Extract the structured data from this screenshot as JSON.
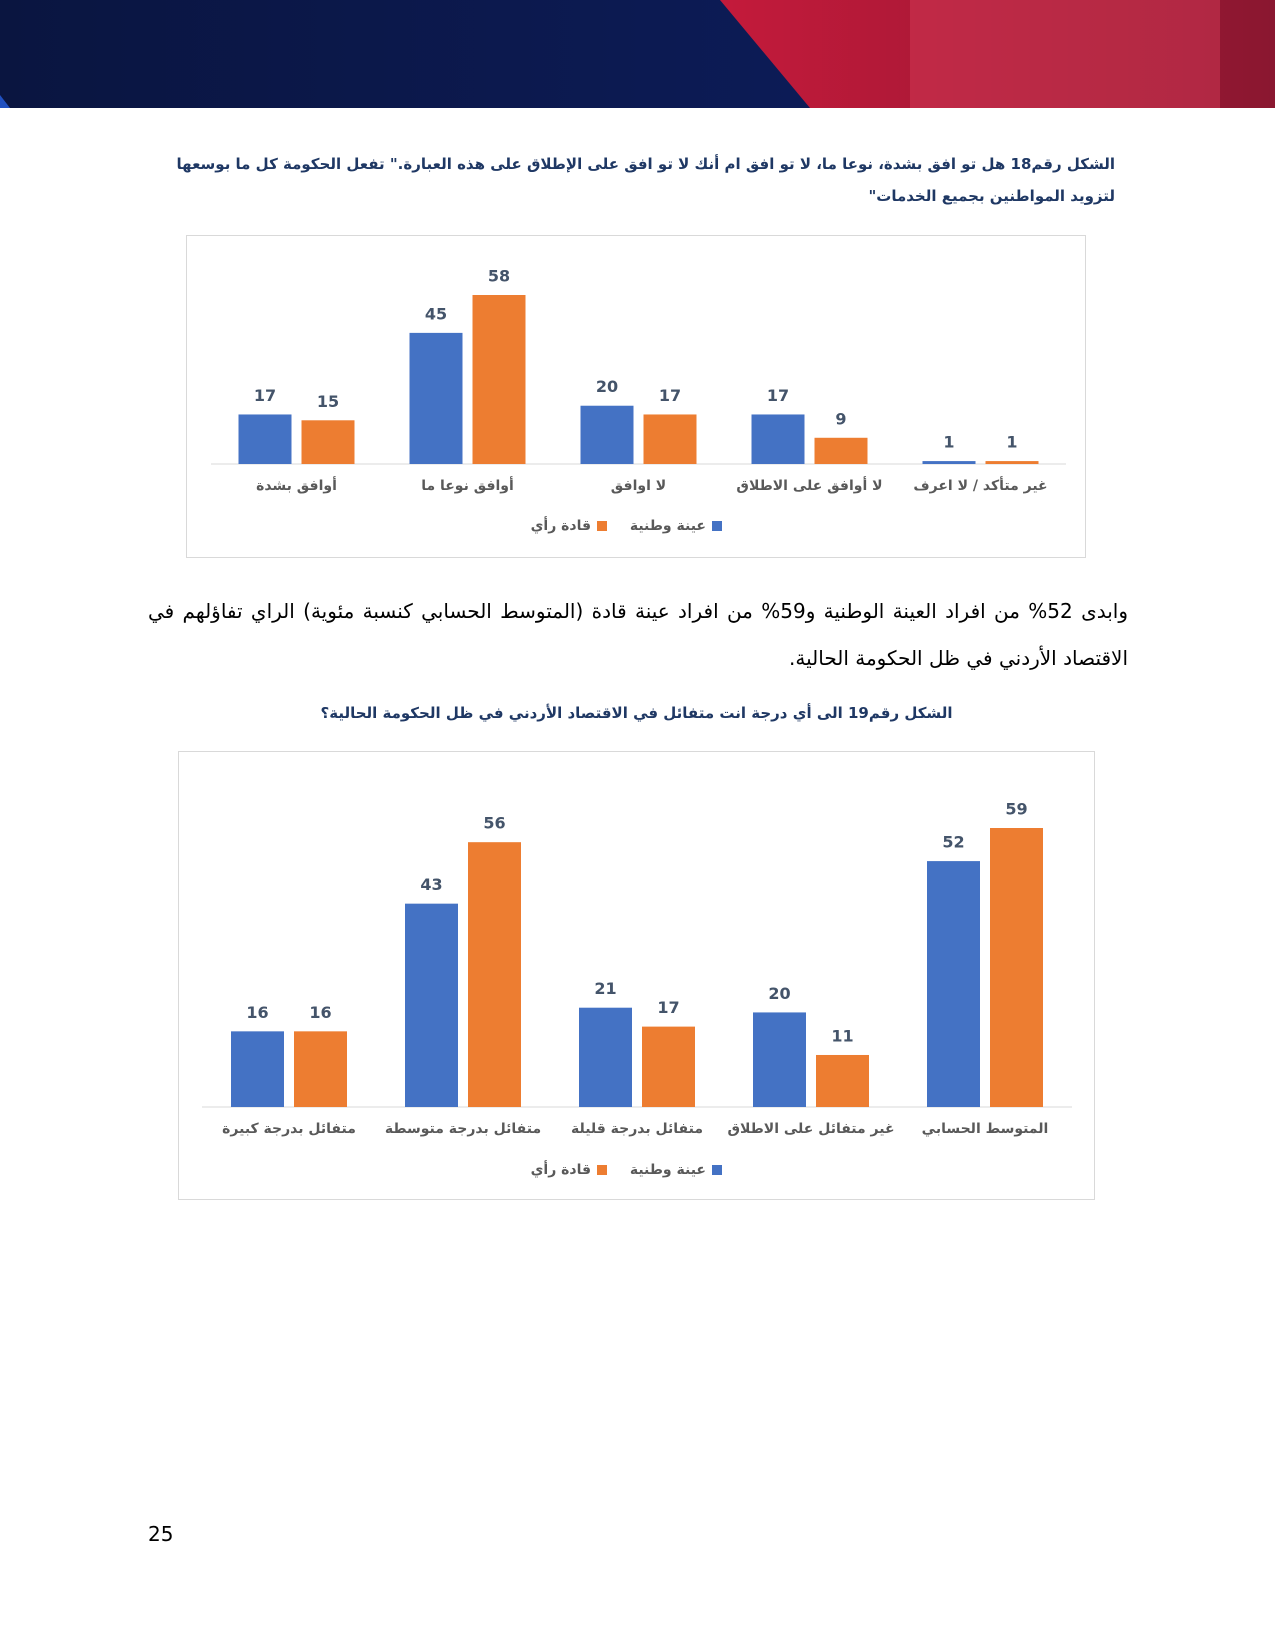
{
  "captions": [
    "الشكل رقم18   هل تو افق بشدة، نوعا ما، لا تو افق ام أنك لا تو افق على الإطلاق على هذه العبارة.\" تفعل الحكومة كل ما بوسعها لتزويد المواطنين بجميع الخدمات\"",
    "الشكل رقم19   الى أي درجة انت متفائل في الاقتصاد الأردني في ظل الحكومة الحالية؟"
  ],
  "paragraph": "وابدى 52% من افراد العينة الوطنية و59% من افراد عينة قادة (المتوسط الحسابي كنسبة مئوية) الراي تفاؤلهم في الاقتصاد الأردني في ظل الحكومة الحالية.",
  "page_number": "25",
  "chart_data": [
    {
      "type": "bar",
      "categories": [
        "أوافق بشدة",
        "أوافق نوعا ما",
        "لا اوافق",
        "لا أوافق على الاطلاق",
        "غير متأكد / لا اعرف"
      ],
      "series": [
        {
          "name": "عينة وطنية",
          "color": "#4472c4",
          "values": [
            17,
            45,
            20,
            17,
            1
          ]
        },
        {
          "name": "قادة رأي",
          "color": "#ed7d31",
          "values": [
            15,
            58,
            17,
            9,
            1
          ]
        }
      ]
    },
    {
      "type": "bar",
      "categories": [
        "متفائل بدرجة كبيرة",
        "متفائل بدرجة متوسطة",
        "متفائل بدرجة قليلة",
        "غير متفائل على الاطلاق",
        "المتوسط الحسابي"
      ],
      "series": [
        {
          "name": "عينة وطنية",
          "color": "#4472c4",
          "values": [
            16,
            43,
            21,
            20,
            52
          ]
        },
        {
          "name": "قادة رأي",
          "color": "#ed7d31",
          "values": [
            16,
            56,
            17,
            11,
            59
          ]
        }
      ]
    }
  ]
}
